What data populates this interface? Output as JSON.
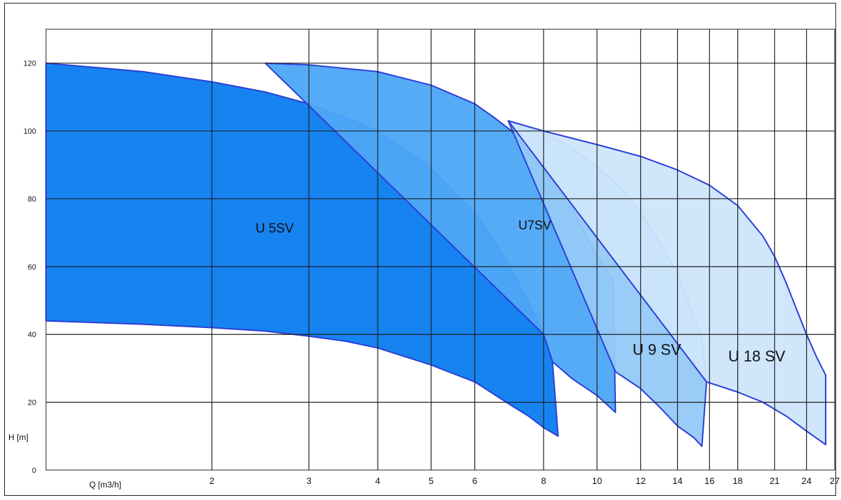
{
  "chart_data": {
    "type": "area",
    "title": "",
    "xlabel": "Q [m3/h]",
    "ylabel": "H [m]",
    "x_scale": "log",
    "xlim": [
      1,
      27
    ],
    "ylim": [
      0,
      130
    ],
    "x_ticks": [
      2,
      3,
      4,
      5,
      6,
      8,
      10,
      12,
      14,
      16,
      18,
      21,
      24,
      27
    ],
    "y_ticks": [
      0,
      20,
      40,
      60,
      80,
      100,
      120
    ],
    "grid": true,
    "legend": "none",
    "series": [
      {
        "name": "U 5SV",
        "color": "#0a7cf0",
        "top": [
          [
            1,
            120
          ],
          [
            1.5,
            117.5
          ],
          [
            2,
            114.5
          ],
          [
            2.5,
            111.5
          ],
          [
            3,
            108
          ],
          [
            3.5,
            104
          ],
          [
            4,
            100
          ],
          [
            4.5,
            94.5
          ],
          [
            5,
            89
          ],
          [
            5.5,
            82
          ],
          [
            6,
            76
          ],
          [
            6.5,
            68
          ],
          [
            7,
            59
          ],
          [
            7.5,
            50
          ],
          [
            8,
            40
          ],
          [
            8.3,
            32
          ]
        ],
        "bottom": [
          [
            1,
            44
          ],
          [
            1.5,
            43
          ],
          [
            2,
            42
          ],
          [
            2.5,
            41
          ],
          [
            3,
            39.5
          ],
          [
            3.5,
            38
          ],
          [
            4,
            36
          ],
          [
            5,
            31
          ],
          [
            6,
            26
          ],
          [
            7,
            19
          ],
          [
            7.5,
            16
          ],
          [
            8,
            12.5
          ],
          [
            8.5,
            10
          ]
        ],
        "label_text": "U 5SV"
      },
      {
        "name": "U7SV",
        "color": "#4da6f7",
        "top": [
          [
            2.5,
            120
          ],
          [
            3,
            119.5
          ],
          [
            4,
            117.5
          ],
          [
            5,
            113.5
          ],
          [
            6,
            108
          ],
          [
            6.5,
            104
          ],
          [
            7,
            100
          ],
          [
            8,
            88.5
          ],
          [
            9,
            77
          ],
          [
            10,
            63
          ],
          [
            10.7,
            56
          ]
        ],
        "bottom": [
          [
            8,
            40
          ],
          [
            8.3,
            32
          ],
          [
            9,
            27
          ],
          [
            10,
            22
          ],
          [
            10.8,
            17
          ]
        ],
        "label_text": "U7SV"
      },
      {
        "name": "U 9 SV",
        "color": "#93c9f7",
        "top": [
          [
            6.9,
            103
          ],
          [
            8,
            99.5
          ],
          [
            9,
            95
          ],
          [
            10,
            89.5
          ],
          [
            11,
            83.5
          ],
          [
            12,
            76
          ],
          [
            13,
            67
          ],
          [
            14,
            58
          ],
          [
            15,
            45
          ],
          [
            15.5,
            39
          ],
          [
            15.8,
            26
          ]
        ],
        "bottom": [
          [
            10.8,
            29
          ],
          [
            12,
            24
          ],
          [
            13,
            18.5
          ],
          [
            14,
            13
          ],
          [
            15,
            9.5
          ],
          [
            15.5,
            7
          ]
        ],
        "label_text": "U 9 SV"
      },
      {
        "name": "U 18 SV",
        "color": "#cce5fb",
        "top": [
          [
            6.9,
            103
          ],
          [
            8,
            100
          ],
          [
            10,
            96
          ],
          [
            12,
            92.5
          ],
          [
            14,
            88.5
          ],
          [
            16,
            84
          ],
          [
            18,
            78
          ],
          [
            20,
            69
          ],
          [
            21,
            63
          ],
          [
            22,
            55.5
          ],
          [
            24,
            40
          ],
          [
            25,
            33.5
          ],
          [
            26,
            28
          ]
        ],
        "bottom": [
          [
            15.8,
            26
          ],
          [
            18,
            23
          ],
          [
            20,
            20
          ],
          [
            22,
            16
          ],
          [
            24,
            11.5
          ],
          [
            26,
            7.5
          ]
        ],
        "label_text": "U 18 SV"
      }
    ]
  }
}
